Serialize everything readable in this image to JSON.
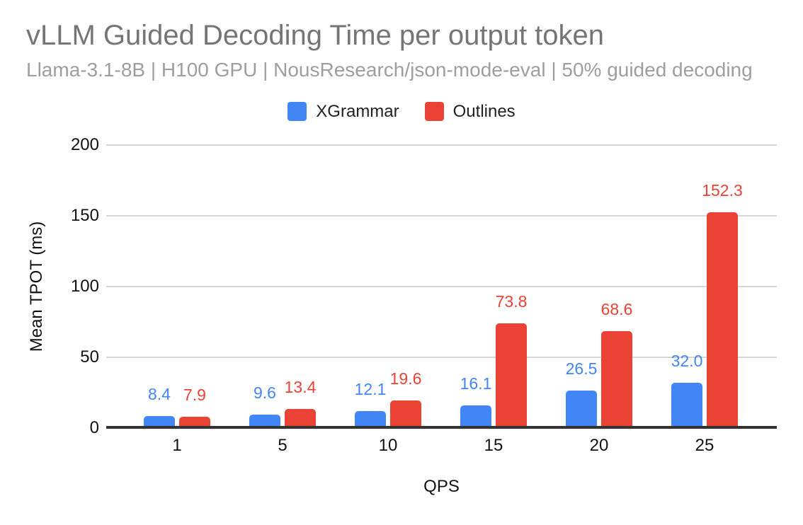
{
  "header": {
    "title": "vLLM Guided Decoding Time per output token",
    "subtitle": "Llama-3.1-8B | H100 GPU | NousResearch/json-mode-eval | 50% guided decoding"
  },
  "legend": [
    {
      "label": "XGrammar",
      "color": "#4285F4"
    },
    {
      "label": "Outlines",
      "color": "#EA4335"
    }
  ],
  "chart_data": {
    "type": "bar",
    "title": "vLLM Guided Decoding Time per output token",
    "subtitle": "Llama-3.1-8B | H100 GPU | NousResearch/json-mode-eval | 50% guided decoding",
    "categories": [
      "1",
      "5",
      "10",
      "15",
      "20",
      "25"
    ],
    "series": [
      {
        "name": "XGrammar",
        "color": "#4285F4",
        "values": [
          8.4,
          9.6,
          12.1,
          16.1,
          26.5,
          32.0
        ]
      },
      {
        "name": "Outlines",
        "color": "#EA4335",
        "values": [
          7.9,
          13.4,
          19.6,
          73.8,
          68.6,
          152.3
        ]
      }
    ],
    "xlabel": "QPS",
    "ylabel": "Mean TPOT (ms)",
    "ylim": [
      0,
      200
    ],
    "yticks": [
      0,
      50,
      100,
      150,
      200
    ],
    "grid": true,
    "gridline_color": "#d6d6d6",
    "axis_color": "#333333",
    "legend_position": "top",
    "value_labels": true,
    "value_label_format": "one-decimal"
  }
}
